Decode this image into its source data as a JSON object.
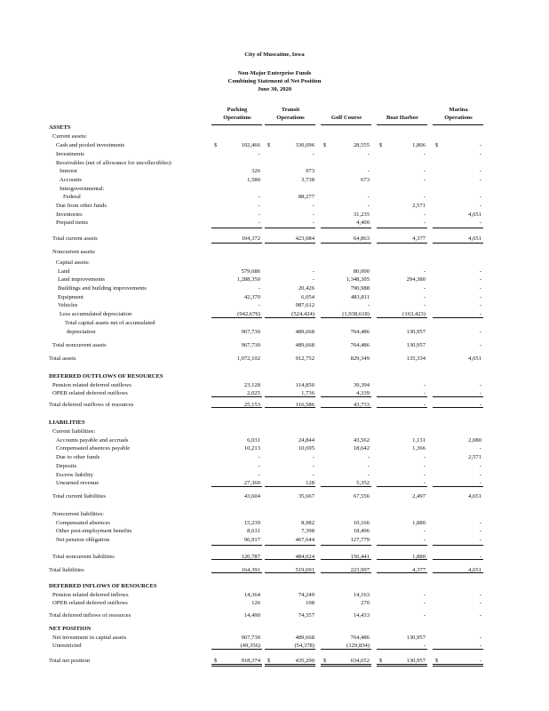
{
  "title": {
    "entity": "City of Muscatine, Iowa",
    "line1": "Non-Major Enterprise Funds",
    "line2": "Combining Statement of Net Position",
    "line3": "June 30, 2020"
  },
  "columns": [
    {
      "line1": "Parking",
      "line2": "Operations"
    },
    {
      "line1": "Transit",
      "line2": "Operations"
    },
    {
      "line1": "",
      "line2": "Golf Course"
    },
    {
      "line1": "",
      "line2": "Boat Harbor"
    },
    {
      "line1": "Marina",
      "line2": "Operations"
    }
  ],
  "currency_symbol": "$",
  "rows": [
    {
      "label": "ASSETS",
      "level": 0,
      "heading": true
    },
    {
      "label": "Current assets:",
      "level": 1
    },
    {
      "label": "Cash and pooled investments",
      "level": 2,
      "dollar": true,
      "values": [
        "102,466",
        "330,096",
        "28,555",
        "1,806",
        "-"
      ]
    },
    {
      "label": "Investments",
      "level": 2,
      "values": [
        "-",
        "-",
        "-",
        "-",
        "-"
      ]
    },
    {
      "label": "Receivables (net of allowance for uncollectibles):",
      "level": 2
    },
    {
      "label": "Interest",
      "level": 3,
      "values": [
        "326",
        "973",
        "-",
        "-",
        "-"
      ]
    },
    {
      "label": "Accounts",
      "level": 3,
      "values": [
        "1,580",
        "3,738",
        "673",
        "-",
        "-"
      ]
    },
    {
      "label": "Intergovernmental:",
      "level": 3
    },
    {
      "label": "Federal",
      "level": 4,
      "values": [
        "-",
        "88,277",
        "-",
        "-",
        "-"
      ]
    },
    {
      "label": "Due from other funds",
      "level": 2,
      "values": [
        "-",
        "-",
        "-",
        "2,571",
        "-"
      ]
    },
    {
      "label": "Inventories",
      "level": 2,
      "values": [
        "-",
        "-",
        "31,235",
        "-",
        "4,651"
      ]
    },
    {
      "label": "Prepaid items",
      "level": 2,
      "values": [
        "-",
        "-",
        "4,400",
        "-",
        "-"
      ]
    },
    {
      "label": "Total current assets",
      "level": 1,
      "total": true,
      "values": [
        "104,372",
        "423,084",
        "64,863",
        "4,377",
        "4,651"
      ]
    },
    {
      "label": "Noncurrent assets:",
      "level": 1
    },
    {
      "label": "Capital assets:",
      "level": 2
    },
    {
      "label": "Land",
      "level": 2.5,
      "values": [
        "579,686",
        "-",
        "80,000",
        "-",
        "-"
      ]
    },
    {
      "label": "Land improvements",
      "level": 2.5,
      "values": [
        "1,288,350",
        "-",
        "1,348,305",
        "294,380",
        "-"
      ]
    },
    {
      "label": "Buildings and building improvements",
      "level": 2.5,
      "values": [
        "-",
        "20,426",
        "790,988",
        "-",
        "-"
      ]
    },
    {
      "label": "Equipment",
      "level": 2.5,
      "values": [
        "42,370",
        "6,054",
        "483,811",
        "-",
        "-"
      ]
    },
    {
      "label": "Vehicles",
      "level": 2.5,
      "values": [
        "-",
        "987,612",
        "-",
        "-",
        "-"
      ]
    },
    {
      "label": "Less accumulated depreciation",
      "level": 3,
      "values": [
        "(942,676)",
        "(524,424)",
        "(1,938,618)",
        "(163,423)",
        "-"
      ]
    },
    {
      "label": "Total capital assets net of accumulated",
      "level": 4.5
    },
    {
      "label": "depreciation",
      "level": 5,
      "total": true,
      "values": [
        "967,730",
        "489,668",
        "764,486",
        "130,957",
        "-"
      ]
    },
    {
      "label": "Total noncurrent assets",
      "level": 1,
      "total": true,
      "values": [
        "967,730",
        "489,668",
        "764,486",
        "130,957",
        "-"
      ]
    },
    {
      "label": "Total assets",
      "level": 0,
      "total": true,
      "values": [
        "1,072,102",
        "912,752",
        "829,349",
        "135,334",
        "4,651"
      ]
    },
    {
      "label": "DEFERRED OUTFLOWS OF RESOURCES",
      "level": 0,
      "heading": true
    },
    {
      "label": "Pension related deferred outflows",
      "level": 1,
      "values": [
        "23,128",
        "114,850",
        "39,394",
        "-",
        "-"
      ]
    },
    {
      "label": "OPEB related deferred outflows",
      "level": 1,
      "values": [
        "2,025",
        "1,736",
        "4,339",
        "-",
        "-"
      ]
    },
    {
      "label": "Total deferred outflows of resources",
      "level": 0,
      "total": true,
      "values": [
        "25,153",
        "116,586",
        "43,733",
        "-",
        "-"
      ]
    },
    {
      "label": "LIABILITIES",
      "level": 0,
      "heading": true
    },
    {
      "label": "Current liabilities:",
      "level": 1
    },
    {
      "label": "Accounts payable and accruals",
      "level": 2,
      "values": [
        "6,031",
        "24,844",
        "43,562",
        "1,131",
        "2,080"
      ]
    },
    {
      "label": "Compensated absences payable",
      "level": 2,
      "values": [
        "10,213",
        "10,695",
        "18,642",
        "1,366",
        "-"
      ]
    },
    {
      "label": "Due to other funds",
      "level": 2,
      "values": [
        "-",
        "-",
        "-",
        "-",
        "2,571"
      ]
    },
    {
      "label": "Deposits",
      "level": 2,
      "values": [
        "-",
        "-",
        "-",
        "-",
        "-"
      ]
    },
    {
      "label": "Escrow liability",
      "level": 2,
      "values": [
        "-",
        "-",
        "-",
        "-",
        "-"
      ]
    },
    {
      "label": "Unearned revenue",
      "level": 2,
      "values": [
        "27,360",
        "128",
        "5,352",
        "-",
        "-"
      ]
    },
    {
      "label": "Total current liabilities",
      "level": 1,
      "total": true,
      "values": [
        "43,604",
        "35,667",
        "67,556",
        "2,497",
        "4,651"
      ]
    },
    {
      "label": "Noncurrent liabilities:",
      "level": 1
    },
    {
      "label": "Compensated absences",
      "level": 2,
      "values": [
        "15,239",
        "8,982",
        "10,166",
        "1,880",
        "-"
      ]
    },
    {
      "label": "Other post-employment benefits",
      "level": 2,
      "values": [
        "8,631",
        "7,398",
        "18,496",
        "-",
        "-"
      ]
    },
    {
      "label": "Net pension obligation",
      "level": 2,
      "values": [
        "96,917",
        "467,644",
        "127,779",
        "-",
        "-"
      ]
    },
    {
      "label": "Total noncurrent liabilities",
      "level": 1,
      "total": true,
      "values": [
        "120,787",
        "484,024",
        "156,441",
        "1,880",
        "-"
      ]
    },
    {
      "label": "Total liabilities",
      "level": 0,
      "total": true,
      "values": [
        "164,391",
        "519,691",
        "223,997",
        "4,377",
        "4,651"
      ]
    },
    {
      "label": "DEFERRED INFLOWS OF RESOURCES",
      "level": 0,
      "heading": true
    },
    {
      "label": "Pension related deferred inflows",
      "level": 1,
      "values": [
        "14,364",
        "74,249",
        "14,163",
        "-",
        "-"
      ]
    },
    {
      "label": "OPEB related deferred outflows",
      "level": 1,
      "values": [
        "126",
        "108",
        "270",
        "-",
        "-"
      ]
    },
    {
      "label": "Total deferred inflows of resources",
      "level": 0,
      "total": true,
      "values": [
        "14,490",
        "74,357",
        "14,433",
        "-",
        "-"
      ]
    },
    {
      "label": "NET POSITION",
      "level": 0,
      "heading": true
    },
    {
      "label": "Net investment in capital assets",
      "level": 1,
      "values": [
        "967,730",
        "489,668",
        "764,486",
        "130,957",
        "-"
      ]
    },
    {
      "label": "Unrestricted",
      "level": 1,
      "values": [
        "(49,356)",
        "(54,378)",
        "(129,834)",
        "-",
        "-"
      ]
    },
    {
      "label": "Total net position",
      "level": 0,
      "total": true,
      "dollar": true,
      "values": [
        "918,374",
        "435,290",
        "634,652",
        "130,957",
        "-"
      ]
    }
  ]
}
